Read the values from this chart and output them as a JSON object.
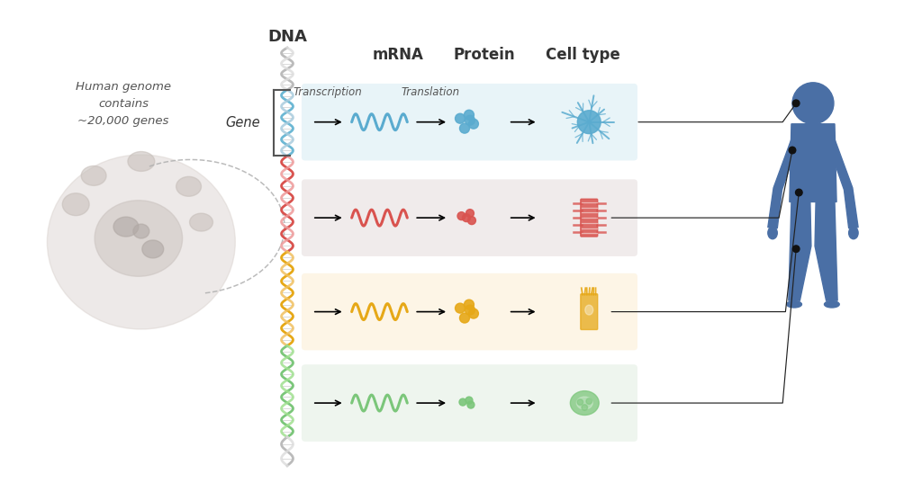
{
  "bg_color": "#ffffff",
  "cell_text": "Human genome\ncontains\n~20,000 genes",
  "dna_label": "DNA",
  "gene_label": "Gene",
  "col_labels": [
    "mRNA",
    "Protein",
    "Cell type"
  ],
  "transcription_label": "Transcription",
  "translation_label": "Translation",
  "row_colors": [
    "#5aabcf",
    "#d9534f",
    "#e6a817",
    "#7bc67a"
  ],
  "row_bg_colors": [
    "#e8f4f8",
    "#f0ebeb",
    "#fdf5e6",
    "#eef5ee"
  ],
  "body_color": "#4a6fa5",
  "figure_width": 10.24,
  "figure_height": 5.37,
  "dpi": 100
}
